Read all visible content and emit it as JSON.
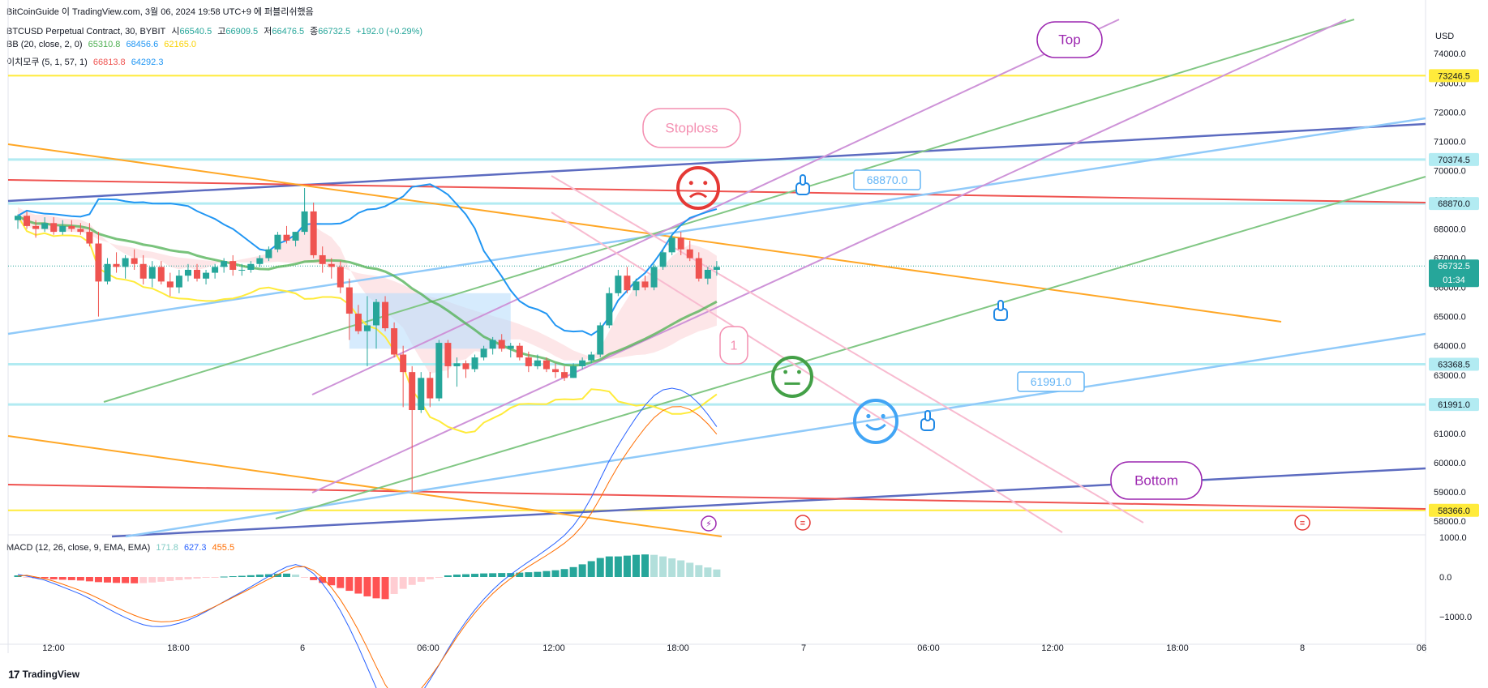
{
  "header": {
    "publisher_line": "BitCoinGuide 이 TradingView.com, 3월 06, 2024 19:58 UTC+9 에 퍼블리쉬했음",
    "symbol_line": "BTCUSD Perpetual Contract, 30, BYBIT",
    "ohlc": {
      "o_label": "시",
      "o": "66540.5",
      "h_label": "고",
      "h": "66909.5",
      "l_label": "저",
      "l": "66476.5",
      "c_label": "종",
      "c": "66732.5",
      "chg": "+192.0 (+0.29%)"
    },
    "bb_label": "BB (20, close, 2, 0)",
    "bb_values": [
      "65310.8",
      "68456.6",
      "62165.0"
    ],
    "ichi_label": "이치모쿠 (5, 1, 57, 1)",
    "ichi_values": [
      "66813.8",
      "64292.3"
    ],
    "macd_label": "MACD (12, 26, close, 9, EMA, EMA)",
    "macd_values": [
      "171.8",
      "627.3",
      "455.5"
    ]
  },
  "currency": "USD",
  "footer": {
    "brand": "TradingView",
    "logo": "17"
  },
  "colors": {
    "up": "#26a69a",
    "down": "#ef5350",
    "bb_basis": "#4caf50",
    "bb_upper": "#2196f3",
    "bb_lower": "#ffeb3b"
  },
  "chart_data": {
    "type": "candlestick",
    "price_axis": {
      "ylim": [
        57500,
        74700
      ],
      "ticks": [
        "74000.0",
        "73000.0",
        "72000.0",
        "71000.0",
        "70000.0",
        "69000.0",
        "68000.0",
        "67000.0",
        "66000.0",
        "65000.0",
        "64000.0",
        "63000.0",
        "62000.0",
        "61000.0",
        "60000.0",
        "59000.0",
        "58000.0"
      ]
    },
    "price_labels": [
      {
        "value": 73246.5,
        "text": "73246.5",
        "color": "#ffeb3b"
      },
      {
        "value": 70374.5,
        "text": "70374.5",
        "color": "#b2ebf2"
      },
      {
        "value": 68870.0,
        "text": "68870.0",
        "color": "#b2ebf2"
      },
      {
        "value": 66732.5,
        "text": "66732.5",
        "sub": "01:34",
        "color": "#26a69a"
      },
      {
        "value": 63368.5,
        "text": "63368.5",
        "color": "#b2ebf2"
      },
      {
        "value": 61991.0,
        "text": "61991.0",
        "color": "#b2ebf2"
      },
      {
        "value": 58366.0,
        "text": "58366.0",
        "color": "#ffeb3b"
      }
    ],
    "macd_axis": {
      "ylim": [
        -1300,
        1150
      ],
      "ticks": [
        "1000.0",
        "0.0",
        "−1000.0"
      ]
    },
    "time_axis": [
      "12:00",
      "18:00",
      "6",
      "06:00",
      "12:00",
      "18:00",
      "7",
      "06:00",
      "12:00",
      "18:00",
      "8",
      "06"
    ],
    "candles": [
      [
        68300,
        68500,
        68000,
        68450
      ],
      [
        68450,
        68600,
        68000,
        68100
      ],
      [
        68100,
        68300,
        67700,
        68000
      ],
      [
        68000,
        68400,
        67900,
        68200
      ],
      [
        68200,
        68400,
        67800,
        67900
      ],
      [
        67900,
        68300,
        67800,
        68100
      ],
      [
        68100,
        68300,
        67900,
        68000
      ],
      [
        68000,
        68200,
        67800,
        67900
      ],
      [
        67900,
        68200,
        67400,
        67500
      ],
      [
        67500,
        67900,
        65000,
        66200
      ],
      [
        66200,
        67000,
        66100,
        66800
      ],
      [
        66800,
        67200,
        66500,
        66700
      ],
      [
        66700,
        67100,
        66300,
        67000
      ],
      [
        67000,
        67300,
        66600,
        66800
      ],
      [
        66800,
        67100,
        66100,
        66300
      ],
      [
        66300,
        66900,
        66000,
        66700
      ],
      [
        66700,
        66900,
        66100,
        66200
      ],
      [
        66200,
        66500,
        65700,
        66000
      ],
      [
        66000,
        66600,
        65800,
        66400
      ],
      [
        66400,
        66800,
        66200,
        66600
      ],
      [
        66600,
        66800,
        66200,
        66300
      ],
      [
        66300,
        66600,
        66100,
        66500
      ],
      [
        66500,
        66800,
        66300,
        66700
      ],
      [
        66700,
        67000,
        66500,
        66900
      ],
      [
        66900,
        67100,
        66400,
        66600
      ],
      [
        66600,
        66800,
        66400,
        66600
      ],
      [
        66600,
        66900,
        66500,
        66800
      ],
      [
        66800,
        67100,
        66700,
        67000
      ],
      [
        67000,
        67400,
        66900,
        67300
      ],
      [
        67300,
        67900,
        67200,
        67800
      ],
      [
        67800,
        68100,
        67500,
        67600
      ],
      [
        67600,
        67900,
        67400,
        67900
      ],
      [
        67900,
        69400,
        67800,
        68600
      ],
      [
        68600,
        68900,
        67000,
        67100
      ],
      [
        67100,
        67400,
        66500,
        66800
      ],
      [
        66800,
        67000,
        66300,
        66700
      ],
      [
        66700,
        66900,
        65800,
        66000
      ],
      [
        66000,
        66300,
        64200,
        65100
      ],
      [
        65100,
        65400,
        64400,
        64500
      ],
      [
        64500,
        65700,
        63300,
        64700
      ],
      [
        64700,
        65600,
        63900,
        65500
      ],
      [
        65500,
        65700,
        64500,
        64600
      ],
      [
        64600,
        64800,
        63600,
        63700
      ],
      [
        63700,
        64000,
        61900,
        63100
      ],
      [
        63100,
        63300,
        59000,
        61800
      ],
      [
        61800,
        63100,
        61700,
        62900
      ],
      [
        62900,
        63100,
        61900,
        62200
      ],
      [
        62200,
        64200,
        62100,
        64100
      ],
      [
        64100,
        64200,
        62900,
        63300
      ],
      [
        63300,
        63600,
        62600,
        63400
      ],
      [
        63400,
        63500,
        62900,
        63200
      ],
      [
        63200,
        63700,
        63100,
        63600
      ],
      [
        63600,
        64000,
        63500,
        63900
      ],
      [
        63900,
        64300,
        63700,
        64200
      ],
      [
        64200,
        64400,
        63800,
        63900
      ],
      [
        63900,
        64100,
        63600,
        64000
      ],
      [
        64000,
        64100,
        63500,
        63600
      ],
      [
        63600,
        63800,
        63100,
        63300
      ],
      [
        63300,
        63700,
        63200,
        63500
      ],
      [
        63500,
        63600,
        63100,
        63200
      ],
      [
        63200,
        63400,
        62900,
        63100
      ],
      [
        63100,
        63300,
        62800,
        62900
      ],
      [
        62900,
        63400,
        62900,
        63300
      ],
      [
        63300,
        63600,
        63200,
        63500
      ],
      [
        63500,
        63800,
        63400,
        63700
      ],
      [
        63700,
        64800,
        63600,
        64700
      ],
      [
        64700,
        66000,
        64600,
        65800
      ],
      [
        65800,
        66600,
        65700,
        66400
      ],
      [
        66400,
        66700,
        65800,
        65900
      ],
      [
        65900,
        66300,
        65700,
        66200
      ],
      [
        66200,
        66400,
        65900,
        66000
      ],
      [
        66000,
        66800,
        65900,
        66700
      ],
      [
        66700,
        67300,
        66600,
        67200
      ],
      [
        67200,
        67800,
        67100,
        67700
      ],
      [
        67700,
        67900,
        67100,
        67300
      ],
      [
        67300,
        67600,
        66900,
        67000
      ],
      [
        67000,
        67200,
        66200,
        66300
      ],
      [
        66300,
        66700,
        66100,
        66600
      ],
      [
        66600,
        66900,
        66400,
        66700
      ]
    ],
    "macd_hist": [
      40,
      -20,
      -30,
      -35,
      -60,
      -70,
      -80,
      -90,
      -110,
      -130,
      -140,
      -150,
      -155,
      -160,
      -155,
      -140,
      -120,
      -100,
      -80,
      -60,
      -40,
      -20,
      -5,
      10,
      20,
      30,
      45,
      60,
      70,
      80,
      85,
      60,
      -10,
      -80,
      -150,
      -210,
      -280,
      -350,
      -420,
      -490,
      -540,
      -560,
      -430,
      -300,
      -200,
      -120,
      -60,
      -10,
      40,
      60,
      70,
      80,
      90,
      95,
      100,
      100,
      110,
      120,
      130,
      150,
      170,
      200,
      250,
      320,
      400,
      480,
      520,
      520,
      540,
      560,
      570,
      560,
      520,
      470,
      420,
      360,
      300,
      240,
      190
    ]
  },
  "annotations": {
    "callouts": [
      {
        "text": "Top",
        "color": "#9c27b0"
      },
      {
        "text": "Stoploss",
        "color": "#f48fb1"
      },
      {
        "text": "1",
        "color": "#f48fb1"
      },
      {
        "text": "Bottom",
        "color": "#9c27b0"
      }
    ],
    "price_notes": [
      {
        "text": "68870.0",
        "color": "#64b5f6"
      },
      {
        "text": "61991.0",
        "color": "#64b5f6"
      }
    ],
    "icons": [
      "sad-face-icon",
      "neutral-face-icon",
      "smile-face-icon",
      "pointing-hand-icon",
      "thumbs-hand-icon",
      "point-right-hand-icon",
      "lightning-event-icon",
      "us-flag-event-icon"
    ]
  }
}
